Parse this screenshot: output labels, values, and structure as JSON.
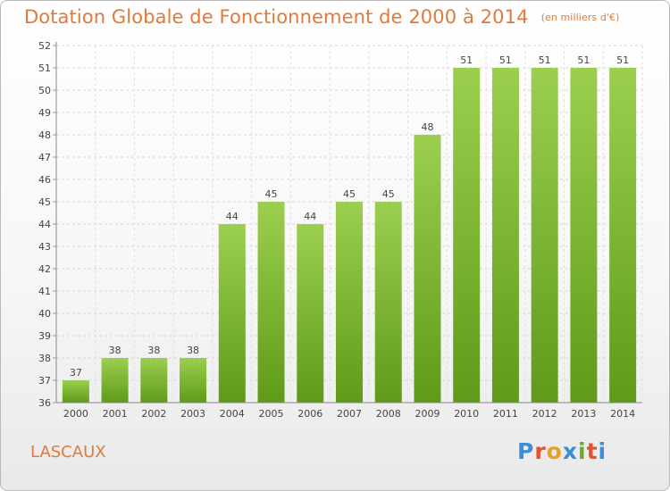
{
  "header": {
    "title": "Dotation Globale de Fonctionnement de 2000 à 2014",
    "unit": "(en milliers d'€)"
  },
  "footer": {
    "commune": "LASCAUX",
    "logo": "Proxiti"
  },
  "colors": {
    "title": "#e07a3a",
    "bar_top": "#9ccf4f",
    "bar_bottom": "#5f9a19",
    "logo_letters": [
      "#3c8fd6",
      "#e8502a",
      "#e8a020",
      "#3c8fd6",
      "#6aaa2a",
      "#e8502a",
      "#3c8fd6"
    ]
  },
  "chart_data": {
    "type": "bar",
    "title": "Dotation Globale de Fonctionnement de 2000 à 2014",
    "subtitle": "(en milliers d'€)",
    "categories": [
      "2000",
      "2001",
      "2002",
      "2003",
      "2004",
      "2005",
      "2006",
      "2007",
      "2008",
      "2009",
      "2010",
      "2011",
      "2012",
      "2013",
      "2014"
    ],
    "values": [
      37,
      38,
      38,
      38,
      44,
      45,
      44,
      45,
      45,
      48,
      51,
      51,
      51,
      51,
      51
    ],
    "xlabel": "",
    "ylabel": "",
    "ylim": [
      36,
      52
    ],
    "yticks": [
      36,
      37,
      38,
      39,
      40,
      41,
      42,
      43,
      44,
      45,
      46,
      47,
      48,
      49,
      50,
      51,
      52
    ],
    "grid": true,
    "legend": "none"
  }
}
